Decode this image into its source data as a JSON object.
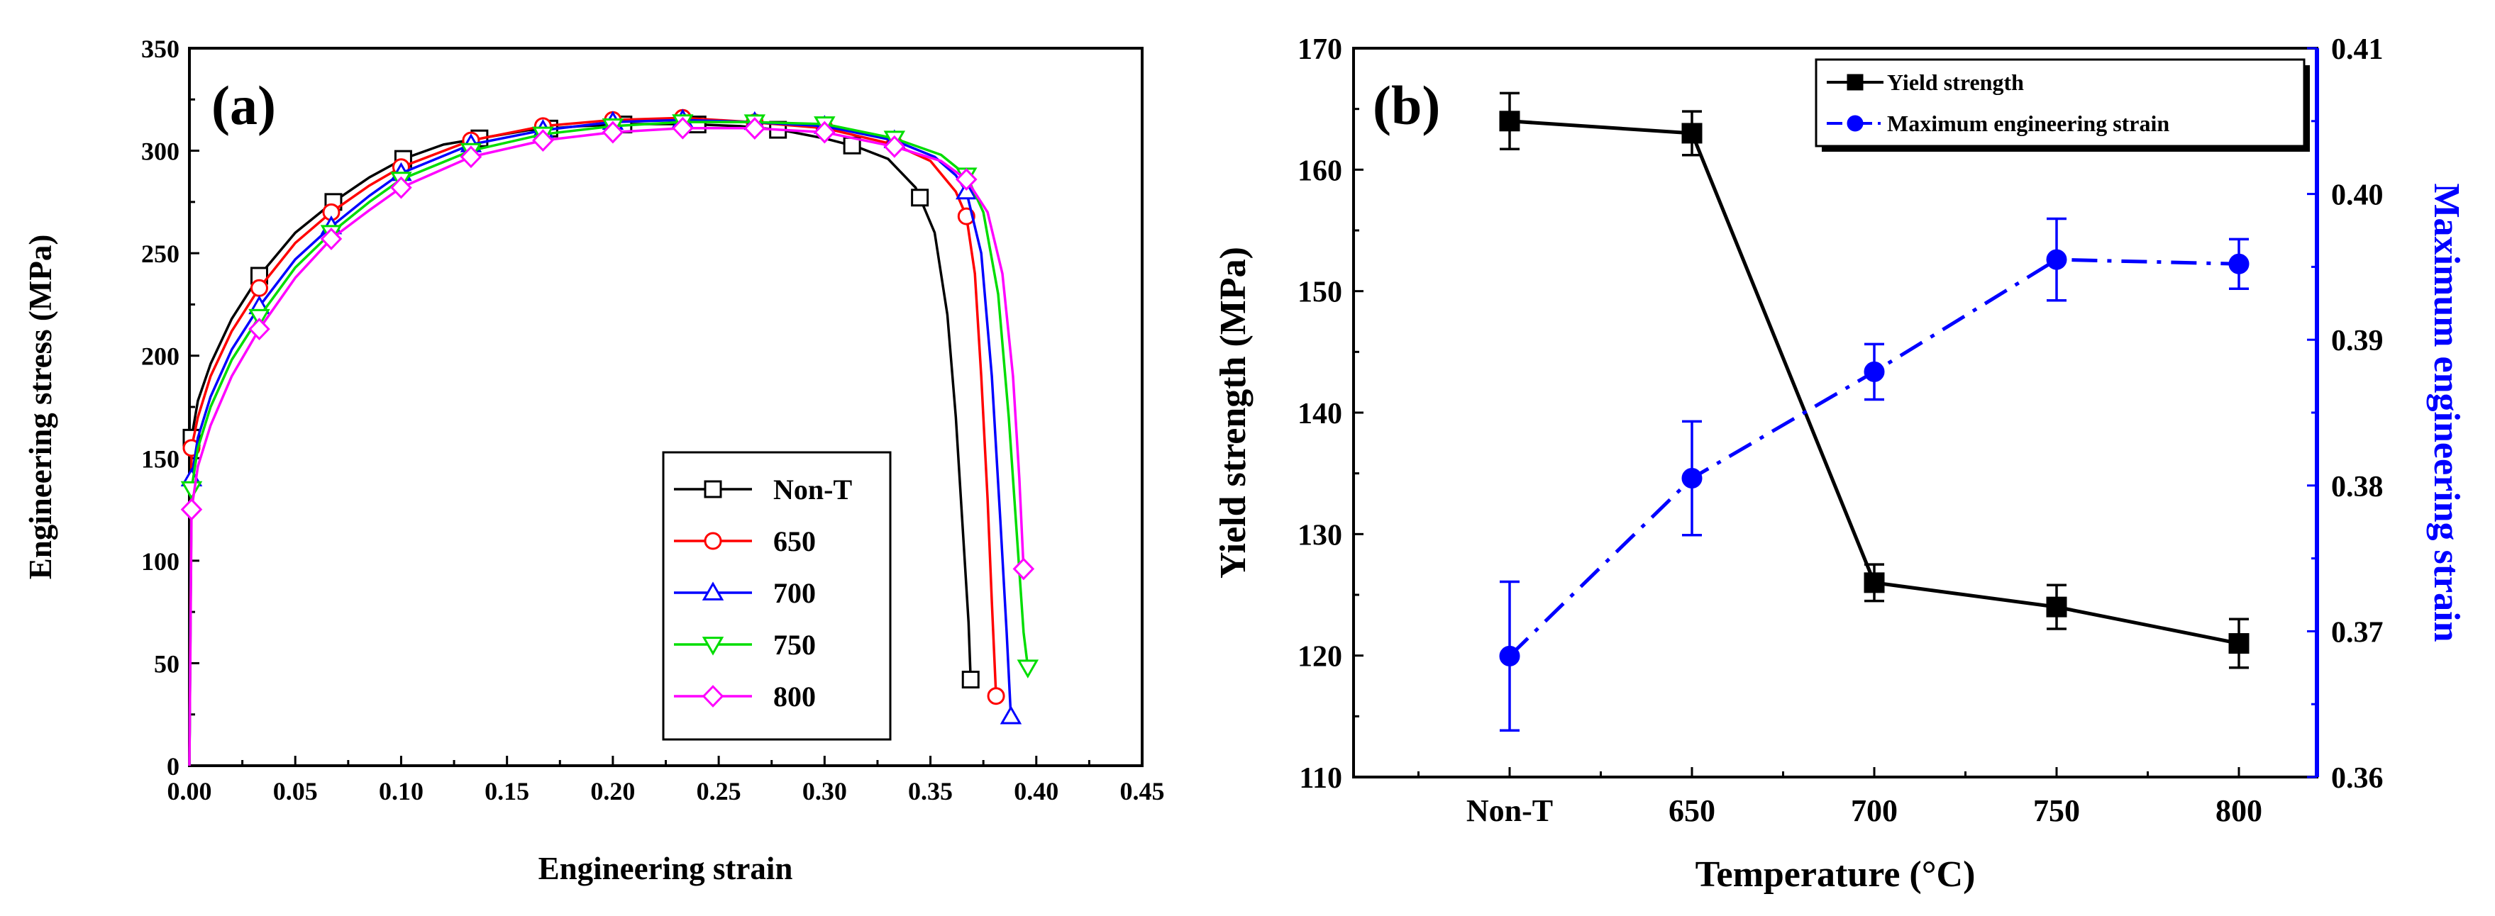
{
  "chart_data": [
    {
      "type": "line",
      "panel_label": "(a)",
      "xlabel": "Engineering strain",
      "ylabel": "Engineering stress (MPa)",
      "xlim": [
        0,
        0.45
      ],
      "ylim": [
        0,
        350
      ],
      "xticks": [
        "0.00",
        "0.05",
        "0.10",
        "0.15",
        "0.20",
        "0.25",
        "0.30",
        "0.35",
        "0.40",
        "0.45"
      ],
      "yticks": [
        "0",
        "50",
        "100",
        "150",
        "200",
        "250",
        "300",
        "350"
      ],
      "legend_position": "lower-right",
      "series": [
        {
          "name": "Non-T",
          "color": "#000000",
          "marker": "square",
          "x": [
            0,
            0.001,
            0.004,
            0.01,
            0.02,
            0.033,
            0.05,
            0.068,
            0.085,
            0.101,
            0.12,
            0.137,
            0.16,
            0.185,
            0.21,
            0.235,
            0.26,
            0.28,
            0.3,
            0.315,
            0.33,
            0.343,
            0.352,
            0.358,
            0.362,
            0.365,
            0.368,
            0.369
          ],
          "y": [
            0,
            160,
            178,
            196,
            218,
            239,
            260,
            275,
            287,
            296,
            303,
            306,
            310,
            312,
            313,
            313,
            312,
            310,
            306,
            302,
            296,
            282,
            260,
            220,
            170,
            120,
            70,
            42
          ],
          "marker_x": [
            0.001,
            0.033,
            0.068,
            0.101,
            0.137,
            0.17,
            0.205,
            0.24,
            0.278,
            0.313,
            0.345,
            0.369
          ]
        },
        {
          "name": "650",
          "color": "#ff0000",
          "marker": "circle",
          "x": [
            0,
            0.001,
            0.004,
            0.01,
            0.02,
            0.033,
            0.05,
            0.067,
            0.085,
            0.1,
            0.133,
            0.167,
            0.2,
            0.233,
            0.265,
            0.3,
            0.333,
            0.35,
            0.362,
            0.367,
            0.371,
            0.374,
            0.377,
            0.379,
            0.381
          ],
          "y": [
            0,
            155,
            170,
            190,
            212,
            233,
            255,
            270,
            283,
            292,
            305,
            312,
            315,
            316,
            314,
            311,
            303,
            295,
            280,
            268,
            240,
            190,
            130,
            80,
            34
          ],
          "marker_x": [
            0.001,
            0.033,
            0.067,
            0.1,
            0.133,
            0.167,
            0.2,
            0.233,
            0.267,
            0.3,
            0.333,
            0.367,
            0.381
          ]
        },
        {
          "name": "700",
          "color": "#0000ff",
          "marker": "triangle-up",
          "x": [
            0,
            0.001,
            0.004,
            0.01,
            0.02,
            0.033,
            0.05,
            0.067,
            0.085,
            0.1,
            0.133,
            0.167,
            0.2,
            0.233,
            0.265,
            0.3,
            0.333,
            0.352,
            0.362,
            0.367,
            0.374,
            0.379,
            0.383,
            0.386,
            0.388
          ],
          "y": [
            0,
            140,
            160,
            180,
            203,
            224,
            247,
            263,
            278,
            289,
            303,
            310,
            314,
            315,
            314,
            312,
            305,
            297,
            288,
            280,
            250,
            190,
            120,
            65,
            24
          ],
          "marker_x": [
            0.001,
            0.033,
            0.067,
            0.1,
            0.133,
            0.167,
            0.2,
            0.233,
            0.267,
            0.3,
            0.333,
            0.367,
            0.388
          ]
        },
        {
          "name": "750",
          "color": "#00dd00",
          "marker": "triangle-down",
          "x": [
            0,
            0.001,
            0.004,
            0.01,
            0.02,
            0.033,
            0.05,
            0.067,
            0.085,
            0.1,
            0.133,
            0.167,
            0.2,
            0.233,
            0.265,
            0.3,
            0.333,
            0.355,
            0.367,
            0.375,
            0.382,
            0.387,
            0.391,
            0.394,
            0.396
          ],
          "y": [
            0,
            135,
            155,
            175,
            198,
            219,
            243,
            260,
            275,
            286,
            300,
            308,
            312,
            314,
            314,
            313,
            306,
            298,
            288,
            270,
            230,
            170,
            110,
            65,
            48
          ],
          "marker_x": [
            0.001,
            0.033,
            0.067,
            0.1,
            0.133,
            0.167,
            0.2,
            0.233,
            0.267,
            0.3,
            0.333,
            0.367,
            0.396
          ]
        },
        {
          "name": "800",
          "color": "#ff00ff",
          "marker": "diamond",
          "x": [
            0,
            0.001,
            0.004,
            0.01,
            0.02,
            0.033,
            0.05,
            0.067,
            0.085,
            0.1,
            0.133,
            0.167,
            0.2,
            0.233,
            0.265,
            0.3,
            0.333,
            0.355,
            0.367,
            0.377,
            0.384,
            0.389,
            0.392,
            0.394
          ],
          "y": [
            0,
            125,
            146,
            166,
            190,
            213,
            238,
            257,
            271,
            282,
            297,
            305,
            309,
            311,
            311,
            309,
            302,
            295,
            286,
            270,
            240,
            190,
            140,
            96
          ],
          "marker_x": [
            0.001,
            0.033,
            0.067,
            0.1,
            0.133,
            0.167,
            0.2,
            0.233,
            0.267,
            0.3,
            0.333,
            0.367,
            0.394
          ]
        }
      ]
    },
    {
      "type": "line",
      "panel_label": "(b)",
      "xlabel": "Temperature (°C)",
      "ylabel": "Yield strength (MPa)",
      "ylabel_right": "Maximum engineering strain",
      "categories": [
        "Non-T",
        "650",
        "700",
        "750",
        "800"
      ],
      "ylim": [
        110,
        170
      ],
      "ylim_right": [
        0.36,
        0.41
      ],
      "yticks": [
        "110",
        "120",
        "130",
        "140",
        "150",
        "160",
        "170"
      ],
      "yticks_right": [
        "0.36",
        "0.37",
        "0.38",
        "0.39",
        "0.40",
        "0.41"
      ],
      "legend_position": "top-right",
      "series": [
        {
          "name": "Yield strength",
          "color": "#000000",
          "marker": "square",
          "axis": "left",
          "line_style": "solid",
          "values": [
            164,
            163,
            126,
            124,
            121
          ],
          "errors": [
            2.3,
            1.8,
            1.5,
            1.8,
            2.0
          ]
        },
        {
          "name": "Maximum engineering strain",
          "color": "#0000ff",
          "marker": "circle",
          "axis": "right",
          "line_style": "dash-dot",
          "values": [
            0.3683,
            0.3805,
            0.3878,
            0.3955,
            0.3952
          ],
          "errors": [
            0.0051,
            0.0039,
            0.0019,
            0.0028,
            0.0017
          ]
        }
      ]
    }
  ]
}
